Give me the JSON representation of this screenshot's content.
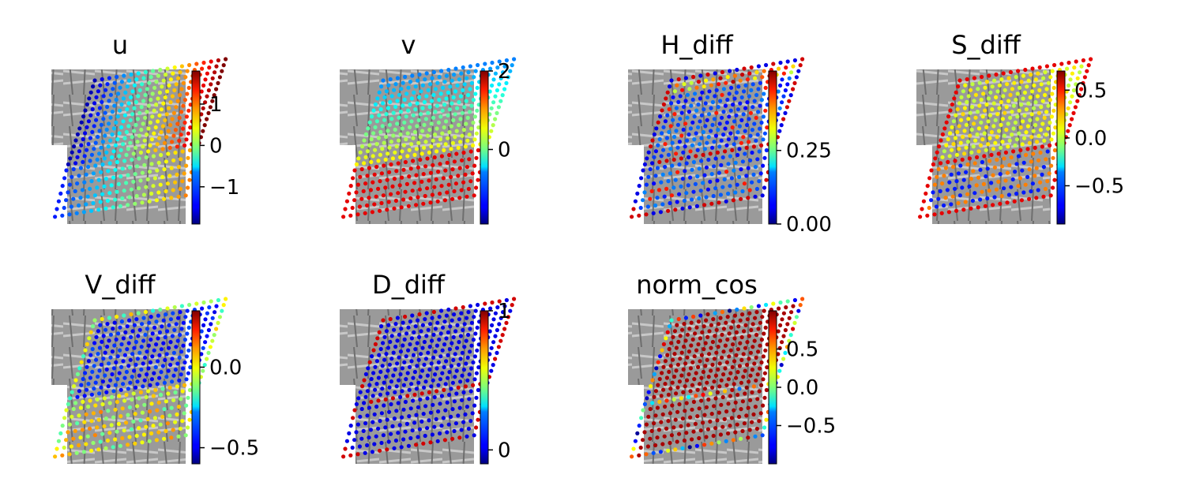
{
  "chart_data": [
    {
      "type": "scatter",
      "title": "u",
      "pattern": "u",
      "colorbar": {
        "ticks": [
          1,
          0,
          -1
        ],
        "tick_labels": [
          "1",
          "0",
          "−1"
        ],
        "range": [
          -1.9,
          1.8
        ]
      }
    },
    {
      "type": "scatter",
      "title": "v",
      "pattern": "v",
      "colorbar": {
        "ticks": [
          2,
          0
        ],
        "tick_labels": [
          "2",
          "0"
        ],
        "range": [
          -1.9,
          2.0
        ]
      }
    },
    {
      "type": "scatter",
      "title": "H_diff",
      "pattern": "hdiff",
      "colorbar": {
        "ticks": [
          0.25,
          0.0
        ],
        "tick_labels": [
          "0.25",
          "0.00"
        ],
        "range": [
          0.0,
          0.52
        ]
      }
    },
    {
      "type": "scatter",
      "title": "S_diff",
      "pattern": "sdiff",
      "colorbar": {
        "ticks": [
          0.5,
          0.0,
          -0.5
        ],
        "tick_labels": [
          "0.5",
          "0.0",
          "−0.5"
        ],
        "range": [
          -0.9,
          0.7
        ]
      }
    },
    {
      "type": "scatter",
      "title": "V_diff",
      "pattern": "vdiff",
      "colorbar": {
        "ticks": [
          0.0,
          -0.5
        ],
        "tick_labels": [
          "0.0",
          "−0.5"
        ],
        "range": [
          -0.6,
          0.35
        ]
      }
    },
    {
      "type": "scatter",
      "title": "D_diff",
      "pattern": "ddiff",
      "colorbar": {
        "ticks": [
          1,
          0
        ],
        "tick_labels": [
          "1",
          "0"
        ],
        "range": [
          -0.1,
          1.0
        ]
      }
    },
    {
      "type": "scatter",
      "title": "norm_cos",
      "pattern": "normcos",
      "colorbar": {
        "ticks": [
          0.5,
          0.0,
          -0.5
        ],
        "tick_labels": [
          "0.5",
          "0.0",
          "−0.5"
        ],
        "range": [
          -1.0,
          1.0
        ]
      }
    }
  ],
  "colormap": "jet"
}
